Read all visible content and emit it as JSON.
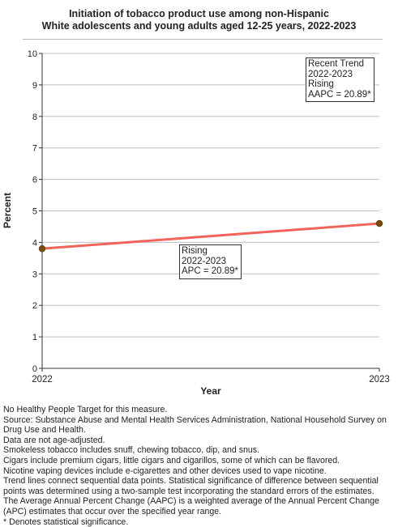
{
  "chart_data": {
    "type": "line",
    "title": "Initiation of tobacco product use among non-Hispanic White adolescents and young adults aged 12-25 years, 2022-2023",
    "title_lines": [
      "Initiation of tobacco product use among non-Hispanic",
      "White adolescents and young adults aged 12-25 years, 2022-2023"
    ],
    "xlabel": "Year",
    "ylabel": "Percent",
    "x": [
      "2022",
      "2023"
    ],
    "series": [
      {
        "values": [
          3.8,
          4.6
        ],
        "color": "#f0645a"
      }
    ],
    "point_color": "#7a4a10",
    "ylim": [
      0,
      10
    ],
    "yticks": [
      "0",
      "1",
      "2",
      "3",
      "4",
      "5",
      "6",
      "7",
      "8",
      "9",
      "10"
    ],
    "grid": true,
    "annotations": {
      "segment": {
        "lines": [
          "Rising",
          "2022-2023",
          "APC = 20.89*"
        ]
      },
      "trend": {
        "lines": [
          "Recent Trend",
          "2022-2023",
          "Rising",
          "AAPC = 20.89*"
        ]
      }
    }
  },
  "notes": [
    "No Healthy People Target for this measure.",
    "Source: Substance Abuse and Mental Health Services Administration, National Household Survey on Drug Use and Health.",
    "Data are not age-adjusted.",
    "Smokeless tobacco includes snuff, chewing tobacco, dip, and snus.",
    "Cigars include premium cigars, little cigars and cigarillos, some of which can be flavored.",
    "Nicotine vaping devices include e-cigarettes and other devices used to vape nicotine.",
    "Trend lines connect sequential data points. Statistical significance of difference between sequential points was determined using a two-sample test incorporating the standard errors of the estimates.",
    "The Average Annual Percent Change (AAPC) is a weighted average of the Annual Percent Change (APC) estimates that occur over the specified year range.",
    "* Denotes statistical significance."
  ]
}
